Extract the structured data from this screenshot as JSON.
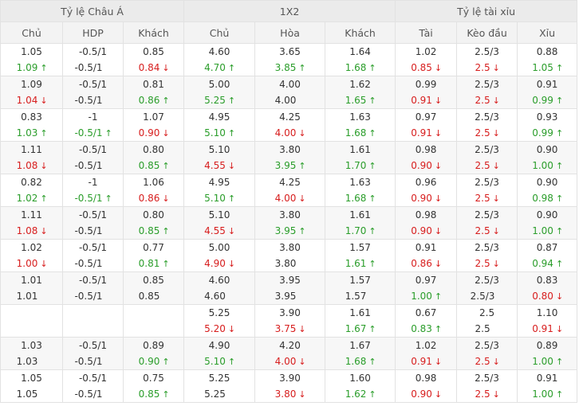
{
  "groups": [
    {
      "title": "Tỷ lệ Châu Á",
      "span": 3
    },
    {
      "title": "1X2",
      "span": 3
    },
    {
      "title": "Tỷ lệ tài xỉu",
      "span": 3
    }
  ],
  "columns": [
    "Chủ",
    "HDP",
    "Khách",
    "Chủ",
    "Hòa",
    "Khách",
    "Tài",
    "Kèo đầu",
    "Xỉu"
  ],
  "rows": [
    {
      "cells": [
        {
          "open": "1.05",
          "cur": "1.09",
          "dir": "up"
        },
        {
          "open": "-0.5/1",
          "cur": "-0.5/1",
          "dir": ""
        },
        {
          "open": "0.85",
          "cur": "0.84",
          "dir": "down"
        },
        {
          "open": "4.60",
          "cur": "4.70",
          "dir": "up"
        },
        {
          "open": "3.65",
          "cur": "3.85",
          "dir": "up"
        },
        {
          "open": "1.64",
          "cur": "1.68",
          "dir": "up"
        },
        {
          "open": "1.02",
          "cur": "0.85",
          "dir": "down"
        },
        {
          "open": "2.5/3",
          "cur": "2.5",
          "dir": "down"
        },
        {
          "open": "0.88",
          "cur": "1.05",
          "dir": "up"
        }
      ]
    },
    {
      "cells": [
        {
          "open": "1.09",
          "cur": "1.04",
          "dir": "down"
        },
        {
          "open": "-0.5/1",
          "cur": "-0.5/1",
          "dir": ""
        },
        {
          "open": "0.81",
          "cur": "0.86",
          "dir": "up"
        },
        {
          "open": "5.00",
          "cur": "5.25",
          "dir": "up"
        },
        {
          "open": "4.00",
          "cur": "4.00",
          "dir": ""
        },
        {
          "open": "1.62",
          "cur": "1.65",
          "dir": "up"
        },
        {
          "open": "0.99",
          "cur": "0.91",
          "dir": "down"
        },
        {
          "open": "2.5/3",
          "cur": "2.5",
          "dir": "down"
        },
        {
          "open": "0.91",
          "cur": "0.99",
          "dir": "up"
        }
      ]
    },
    {
      "cells": [
        {
          "open": "0.83",
          "cur": "1.03",
          "dir": "up"
        },
        {
          "open": "-1",
          "cur": "-0.5/1",
          "dir": "up"
        },
        {
          "open": "1.07",
          "cur": "0.90",
          "dir": "down"
        },
        {
          "open": "4.95",
          "cur": "5.10",
          "dir": "up"
        },
        {
          "open": "4.25",
          "cur": "4.00",
          "dir": "down"
        },
        {
          "open": "1.63",
          "cur": "1.68",
          "dir": "up"
        },
        {
          "open": "0.97",
          "cur": "0.91",
          "dir": "down"
        },
        {
          "open": "2.5/3",
          "cur": "2.5",
          "dir": "down"
        },
        {
          "open": "0.93",
          "cur": "0.99",
          "dir": "up"
        }
      ]
    },
    {
      "cells": [
        {
          "open": "1.11",
          "cur": "1.08",
          "dir": "down"
        },
        {
          "open": "-0.5/1",
          "cur": "-0.5/1",
          "dir": ""
        },
        {
          "open": "0.80",
          "cur": "0.85",
          "dir": "up"
        },
        {
          "open": "5.10",
          "cur": "4.55",
          "dir": "down"
        },
        {
          "open": "3.80",
          "cur": "3.95",
          "dir": "up"
        },
        {
          "open": "1.61",
          "cur": "1.70",
          "dir": "up"
        },
        {
          "open": "0.98",
          "cur": "0.90",
          "dir": "down"
        },
        {
          "open": "2.5/3",
          "cur": "2.5",
          "dir": "down"
        },
        {
          "open": "0.90",
          "cur": "1.00",
          "dir": "up"
        }
      ]
    },
    {
      "cells": [
        {
          "open": "0.82",
          "cur": "1.02",
          "dir": "up"
        },
        {
          "open": "-1",
          "cur": "-0.5/1",
          "dir": "up"
        },
        {
          "open": "1.06",
          "cur": "0.86",
          "dir": "down"
        },
        {
          "open": "4.95",
          "cur": "5.10",
          "dir": "up"
        },
        {
          "open": "4.25",
          "cur": "4.00",
          "dir": "down"
        },
        {
          "open": "1.63",
          "cur": "1.68",
          "dir": "up"
        },
        {
          "open": "0.96",
          "cur": "0.90",
          "dir": "down"
        },
        {
          "open": "2.5/3",
          "cur": "2.5",
          "dir": "down"
        },
        {
          "open": "0.90",
          "cur": "0.98",
          "dir": "up"
        }
      ]
    },
    {
      "cells": [
        {
          "open": "1.11",
          "cur": "1.08",
          "dir": "down"
        },
        {
          "open": "-0.5/1",
          "cur": "-0.5/1",
          "dir": ""
        },
        {
          "open": "0.80",
          "cur": "0.85",
          "dir": "up"
        },
        {
          "open": "5.10",
          "cur": "4.55",
          "dir": "down"
        },
        {
          "open": "3.80",
          "cur": "3.95",
          "dir": "up"
        },
        {
          "open": "1.61",
          "cur": "1.70",
          "dir": "up"
        },
        {
          "open": "0.98",
          "cur": "0.90",
          "dir": "down"
        },
        {
          "open": "2.5/3",
          "cur": "2.5",
          "dir": "down"
        },
        {
          "open": "0.90",
          "cur": "1.00",
          "dir": "up"
        }
      ]
    },
    {
      "cells": [
        {
          "open": "1.02",
          "cur": "1.00",
          "dir": "down"
        },
        {
          "open": "-0.5/1",
          "cur": "-0.5/1",
          "dir": ""
        },
        {
          "open": "0.77",
          "cur": "0.81",
          "dir": "up"
        },
        {
          "open": "5.00",
          "cur": "4.90",
          "dir": "down"
        },
        {
          "open": "3.80",
          "cur": "3.80",
          "dir": ""
        },
        {
          "open": "1.57",
          "cur": "1.61",
          "dir": "up"
        },
        {
          "open": "0.91",
          "cur": "0.86",
          "dir": "down"
        },
        {
          "open": "2.5/3",
          "cur": "2.5",
          "dir": "down"
        },
        {
          "open": "0.87",
          "cur": "0.94",
          "dir": "up"
        }
      ]
    },
    {
      "cells": [
        {
          "open": "1.01",
          "cur": "1.01",
          "dir": ""
        },
        {
          "open": "-0.5/1",
          "cur": "-0.5/1",
          "dir": ""
        },
        {
          "open": "0.85",
          "cur": "0.85",
          "dir": ""
        },
        {
          "open": "4.60",
          "cur": "4.60",
          "dir": ""
        },
        {
          "open": "3.95",
          "cur": "3.95",
          "dir": ""
        },
        {
          "open": "1.57",
          "cur": "1.57",
          "dir": ""
        },
        {
          "open": "0.97",
          "cur": "1.00",
          "dir": "up"
        },
        {
          "open": "2.5/3",
          "cur": "2.5/3",
          "dir": ""
        },
        {
          "open": "0.83",
          "cur": "0.80",
          "dir": "down"
        }
      ]
    },
    {
      "cells": [
        {
          "open": "",
          "cur": "",
          "dir": ""
        },
        {
          "open": "",
          "cur": "",
          "dir": ""
        },
        {
          "open": "",
          "cur": "",
          "dir": ""
        },
        {
          "open": "5.25",
          "cur": "5.20",
          "dir": "down"
        },
        {
          "open": "3.90",
          "cur": "3.75",
          "dir": "down"
        },
        {
          "open": "1.61",
          "cur": "1.67",
          "dir": "up"
        },
        {
          "open": "0.67",
          "cur": "0.83",
          "dir": "up"
        },
        {
          "open": "2.5",
          "cur": "2.5",
          "dir": ""
        },
        {
          "open": "1.10",
          "cur": "0.91",
          "dir": "down"
        }
      ]
    },
    {
      "cells": [
        {
          "open": "1.03",
          "cur": "1.03",
          "dir": ""
        },
        {
          "open": "-0.5/1",
          "cur": "-0.5/1",
          "dir": ""
        },
        {
          "open": "0.89",
          "cur": "0.90",
          "dir": "up"
        },
        {
          "open": "4.90",
          "cur": "5.10",
          "dir": "up"
        },
        {
          "open": "4.20",
          "cur": "4.00",
          "dir": "down"
        },
        {
          "open": "1.67",
          "cur": "1.68",
          "dir": "up"
        },
        {
          "open": "1.02",
          "cur": "0.91",
          "dir": "down"
        },
        {
          "open": "2.5/3",
          "cur": "2.5",
          "dir": "down"
        },
        {
          "open": "0.89",
          "cur": "1.00",
          "dir": "up"
        }
      ]
    },
    {
      "cells": [
        {
          "open": "1.05",
          "cur": "1.05",
          "dir": ""
        },
        {
          "open": "-0.5/1",
          "cur": "-0.5/1",
          "dir": ""
        },
        {
          "open": "0.75",
          "cur": "0.85",
          "dir": "up"
        },
        {
          "open": "5.25",
          "cur": "5.25",
          "dir": ""
        },
        {
          "open": "3.90",
          "cur": "3.80",
          "dir": "down"
        },
        {
          "open": "1.60",
          "cur": "1.62",
          "dir": "up"
        },
        {
          "open": "0.98",
          "cur": "0.90",
          "dir": "down"
        },
        {
          "open": "2.5/3",
          "cur": "2.5",
          "dir": "down"
        },
        {
          "open": "0.91",
          "cur": "1.00",
          "dir": "up"
        }
      ]
    }
  ]
}
